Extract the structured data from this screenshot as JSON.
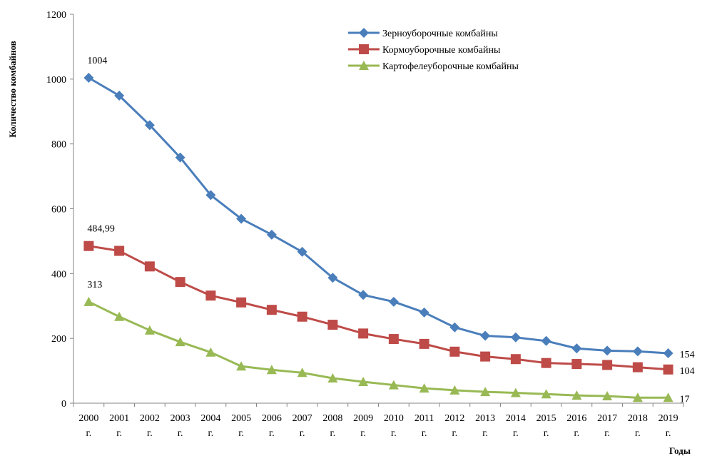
{
  "chart_data": {
    "type": "line",
    "title": "",
    "xlabel": "Годы",
    "ylabel": "Количество комбайнов",
    "ylim": [
      0,
      1200
    ],
    "yticks": [
      0,
      200,
      400,
      600,
      800,
      1000,
      1200
    ],
    "grid": false,
    "legend_position": "top-right",
    "categories": [
      "2000 г.",
      "2001 г.",
      "2002 г.",
      "2003 г.",
      "2004 г.",
      "2005 г.",
      "2006 г.",
      "2007 г.",
      "2008 г.",
      "2009 г.",
      "2010 г.",
      "2011 г.",
      "2012 г.",
      "2013 г.",
      "2014 г.",
      "2015 г.",
      "2016 г.",
      "2017 г.",
      "2018 г.",
      "2019 г."
    ],
    "series": [
      {
        "name": "Зерноуборочные комбайны",
        "color": "#4a7ebb",
        "marker": "diamond",
        "values": [
          1004,
          949,
          858,
          758,
          642,
          569,
          520,
          467,
          387,
          334,
          313,
          280,
          234,
          208,
          203,
          192,
          169,
          162,
          160,
          154
        ],
        "labels": [
          {
            "index": 0,
            "text": "1004"
          },
          {
            "index": 19,
            "text": "154"
          }
        ]
      },
      {
        "name": "Кормоуборочные комбайны",
        "color": "#be4b48",
        "marker": "square",
        "values": [
          484.99,
          470,
          422,
          374,
          332,
          311,
          288,
          267,
          242,
          215,
          198,
          183,
          159,
          144,
          136,
          124,
          121,
          118,
          111,
          104
        ],
        "labels": [
          {
            "index": 0,
            "text": "484,99"
          },
          {
            "index": 19,
            "text": "104"
          }
        ]
      },
      {
        "name": "Картофелеуборочные комбайны",
        "color": "#98b954",
        "marker": "triangle",
        "values": [
          313,
          267,
          225,
          189,
          157,
          114,
          103,
          94,
          77,
          66,
          56,
          46,
          40,
          35,
          32,
          28,
          24,
          22,
          17,
          17
        ],
        "labels": [
          {
            "index": 0,
            "text": "313"
          },
          {
            "index": 19,
            "text": "17"
          }
        ]
      }
    ]
  }
}
